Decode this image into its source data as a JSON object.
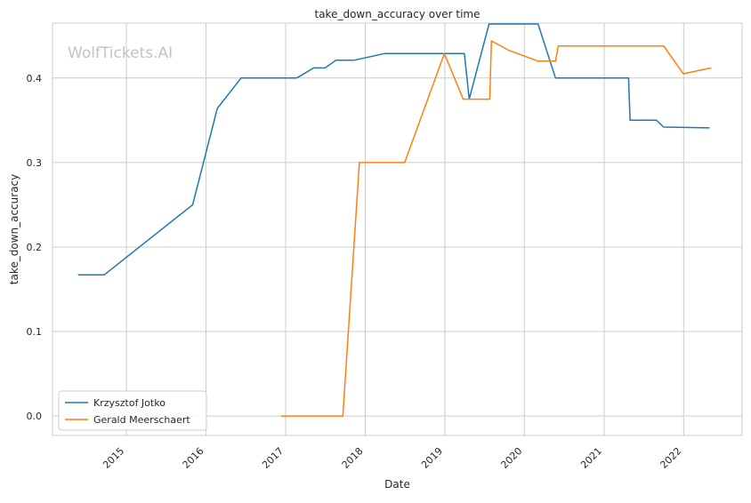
{
  "chart_data": {
    "type": "line",
    "title": "take_down_accuracy over time",
    "xlabel": "Date",
    "ylabel": "take_down_accuracy",
    "watermark": "WolfTickets.AI",
    "xlim": [
      "2014-01-27",
      "2022-09-26"
    ],
    "ylim": [
      -0.023,
      0.465
    ],
    "x_ticks": [
      "2015-01-01",
      "2016-01-01",
      "2017-01-01",
      "2018-01-01",
      "2019-01-01",
      "2020-01-01",
      "2021-01-01",
      "2022-01-01"
    ],
    "x_tick_labels": [
      "2015",
      "2016",
      "2017",
      "2018",
      "2019",
      "2020",
      "2021",
      "2022"
    ],
    "y_ticks": [
      0.0,
      0.1,
      0.2,
      0.3,
      0.4
    ],
    "y_tick_labels": [
      "0.0",
      "0.1",
      "0.2",
      "0.3",
      "0.4"
    ],
    "grid": true,
    "legend_position": "lower-left",
    "series": [
      {
        "name": "Krzysztof Jotko",
        "color": "#1f77b4",
        "points": [
          [
            "2014-05-24",
            0.167
          ],
          [
            "2014-09-21",
            0.167
          ],
          [
            "2015-11-01",
            0.25
          ],
          [
            "2016-02-22",
            0.364
          ],
          [
            "2016-06-10",
            0.4
          ],
          [
            "2017-02-20",
            0.4
          ],
          [
            "2017-05-10",
            0.412
          ],
          [
            "2017-07-01",
            0.412
          ],
          [
            "2017-08-20",
            0.421
          ],
          [
            "2017-11-10",
            0.421
          ],
          [
            "2018-04-01",
            0.429
          ],
          [
            "2019-04-01",
            0.429
          ],
          [
            "2019-04-23",
            0.375
          ],
          [
            "2019-07-23",
            0.464
          ],
          [
            "2020-03-04",
            0.464
          ],
          [
            "2020-05-23",
            0.4
          ],
          [
            "2021-04-23",
            0.4
          ],
          [
            "2021-04-30",
            0.35
          ],
          [
            "2021-08-29",
            0.35
          ],
          [
            "2021-10-01",
            0.342
          ],
          [
            "2022-04-30",
            0.341
          ]
        ]
      },
      {
        "name": "Gerald Meerschaert",
        "color": "#ff7f0e",
        "points": [
          [
            "2016-12-10",
            0.0
          ],
          [
            "2017-09-20",
            0.0
          ],
          [
            "2017-12-05",
            0.3
          ],
          [
            "2018-07-01",
            0.3
          ],
          [
            "2018-12-30",
            0.429
          ],
          [
            "2019-03-26",
            0.375
          ],
          [
            "2019-07-26",
            0.375
          ],
          [
            "2019-08-03",
            0.444
          ],
          [
            "2019-10-20",
            0.433
          ],
          [
            "2020-03-04",
            0.42
          ],
          [
            "2020-05-23",
            0.42
          ],
          [
            "2020-06-04",
            0.438
          ],
          [
            "2021-10-01",
            0.438
          ],
          [
            "2021-12-30",
            0.405
          ],
          [
            "2022-05-07",
            0.412
          ]
        ]
      }
    ]
  }
}
